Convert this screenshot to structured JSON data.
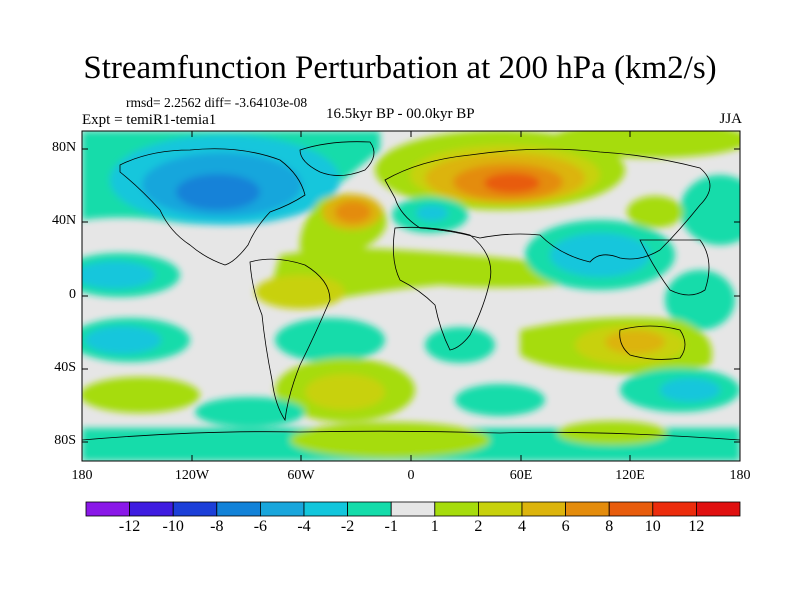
{
  "title": "Streamfunction Perturbation at 200 hPa (km2/s)",
  "stats": "rmsd= 2.2562 diff= -3.64103e-08",
  "experiment": "Expt = temiR1-temia1",
  "period": "16.5kyr BP - 00.0kyr BP",
  "season": "JJA",
  "axes": {
    "x_ticks": [
      "180",
      "120W",
      "60W",
      "0",
      "60E",
      "120E",
      "180"
    ],
    "y_ticks": [
      "80N",
      "40N",
      "0",
      "40S",
      "80S"
    ]
  },
  "colorbar": {
    "labels": [
      "-12",
      "-10",
      "-8",
      "-6",
      "-4",
      "-2",
      "-1",
      "1",
      "2",
      "4",
      "6",
      "8",
      "10",
      "12"
    ],
    "colors": [
      "#8a18e8",
      "#3f1ce0",
      "#1c3fd8",
      "#1282d8",
      "#19a6dc",
      "#12c6dc",
      "#14dcaa",
      "#e6e6e6",
      "#a6dc0c",
      "#c8d10c",
      "#dcb40c",
      "#e48c0c",
      "#e85c0c",
      "#ec2c0c",
      "#e01010"
    ]
  }
}
